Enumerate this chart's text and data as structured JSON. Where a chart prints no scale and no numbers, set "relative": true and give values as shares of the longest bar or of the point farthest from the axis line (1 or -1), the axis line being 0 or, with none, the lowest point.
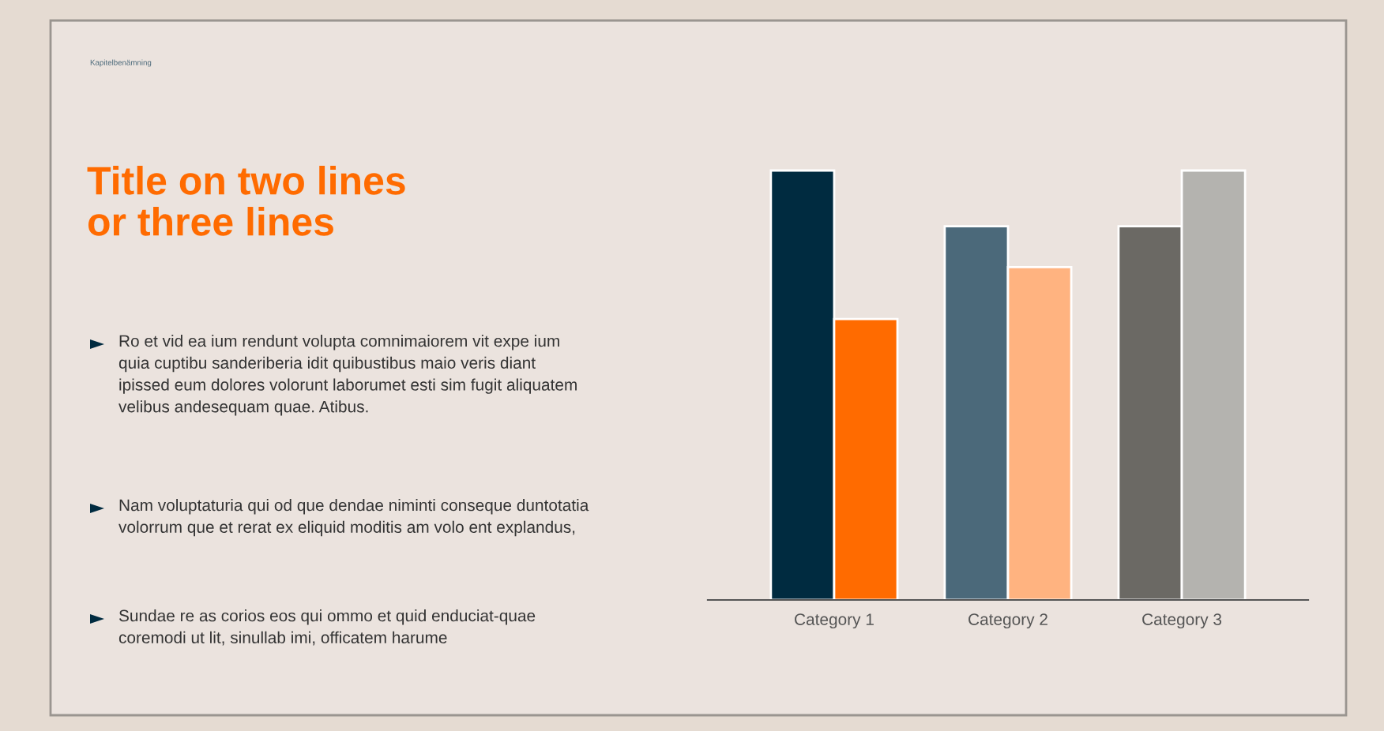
{
  "chart_data": {
    "type": "bar",
    "title": "Title on two lines\nor three lines",
    "relative": true,
    "categories": [
      "Category 1",
      "Category 2",
      "Category 3"
    ],
    "series": [
      {
        "colors": [
          "#002b40",
          "#4b697a",
          "#6b6964"
        ],
        "values": [
          1,
          0.87,
          0.87
        ]
      },
      {
        "colors": [
          "#ff6b00",
          "#ffb380",
          "#b4b3af"
        ],
        "values": [
          0.654,
          0.775,
          1
        ]
      }
    ],
    "annotations": [
      "Kapitelbenämning",
      "Ro et vid ea ium rendunt volupta comnimaiorem vit expe ium quia cuptibu sanderiberia idit quibustibus maio veris diant ipissed eum dolores volorunt laborumet esti sim fugit aliquatem velibus andesequam quae. Atibus.",
      "Nam voluptaturia qui od que dendae niminti conseque duntotatia volorrum que et rerat ex eliquid moditis am volo ent explandus,",
      "Sundae re as corios eos qui ommo et quid enduciat-quae coremodi ut lit, sinullab imi, officatem harume"
    ],
    "grid": false,
    "legend": false
  }
}
